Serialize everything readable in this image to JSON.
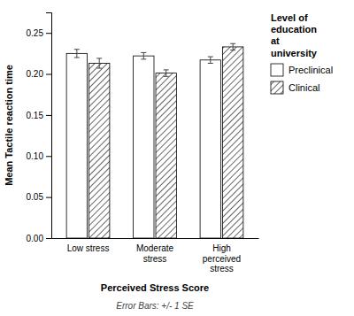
{
  "chart_data": {
    "type": "bar",
    "categories": [
      "Low stress",
      "Moderate\nstress",
      "High\nperceived\nstress"
    ],
    "series": [
      {
        "name": "Preclinical",
        "color": "#ffffff",
        "values": [
          0.225,
          0.222,
          0.217
        ],
        "errors": [
          0.005,
          0.004,
          0.004
        ]
      },
      {
        "name": "Clinical",
        "color": "#ffffff",
        "values": [
          0.213,
          0.201,
          0.233
        ],
        "errors": [
          0.006,
          0.004,
          0.004
        ]
      }
    ],
    "ylabel": "Mean Tactile reaction time",
    "xlabel": "Perceived Stress Score",
    "annotations": [
      "Error Bars: +/- 1 SE"
    ],
    "legend_title": "Level of\neducation\nat\nuniversity",
    "legend": "right",
    "ylim": [
      0.0,
      0.275
    ],
    "yticks": [
      {
        "value": 0.0,
        "label": "0.00"
      },
      0.05,
      {
        "value": 0.1,
        "label": "0.10"
      },
      0.15,
      {
        "value": 0.2,
        "label": "0.20"
      },
      0.25
    ],
    "grid": false
  }
}
